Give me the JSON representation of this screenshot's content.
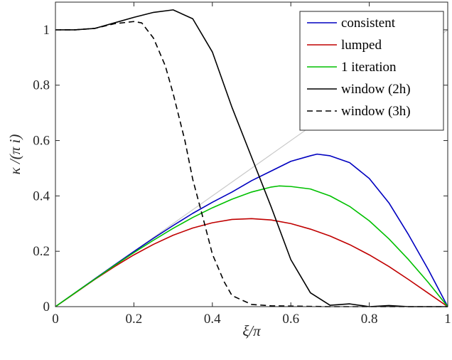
{
  "chart_data": {
    "type": "line",
    "xlabel": "ξ/π",
    "ylabel": "κ /(π i)",
    "xlim": [
      0,
      1
    ],
    "ylim": [
      0,
      1.1
    ],
    "xticks": [
      0,
      0.2,
      0.4,
      0.6,
      0.8,
      1
    ],
    "xtick_labels": [
      "0",
      "0.2",
      "0.4",
      "0.6",
      "0.8",
      "1"
    ],
    "yticks": [
      0,
      0.2,
      0.4,
      0.6,
      0.8,
      1
    ],
    "ytick_labels": [
      "0",
      "0.2",
      "0.4",
      "0.6",
      "0.8",
      "1"
    ],
    "grid": false,
    "legend_position": "top-right",
    "reference_line": {
      "color": "#c8c8c8",
      "x": [
        0,
        1
      ],
      "y": [
        0,
        1
      ]
    },
    "series": [
      {
        "name": "consistent",
        "color": "#0000c0",
        "dash": "solid",
        "x": [
          0,
          0.05,
          0.1,
          0.15,
          0.2,
          0.25,
          0.3,
          0.35,
          0.4,
          0.45,
          0.5,
          0.55,
          0.6,
          0.65,
          0.667,
          0.7,
          0.75,
          0.8,
          0.85,
          0.9,
          0.95,
          1
        ],
        "y": [
          0,
          0.05,
          0.1,
          0.15,
          0.199,
          0.247,
          0.293,
          0.337,
          0.377,
          0.414,
          0.455,
          0.49,
          0.525,
          0.545,
          0.551,
          0.545,
          0.52,
          0.463,
          0.375,
          0.26,
          0.135,
          0
        ]
      },
      {
        "name": "lumped",
        "color": "#c00000",
        "dash": "solid",
        "x": [
          0,
          0.05,
          0.1,
          0.15,
          0.2,
          0.25,
          0.3,
          0.35,
          0.4,
          0.45,
          0.5,
          0.55,
          0.6,
          0.65,
          0.7,
          0.75,
          0.8,
          0.85,
          0.9,
          0.95,
          1
        ],
        "y": [
          0,
          0.049,
          0.098,
          0.144,
          0.187,
          0.225,
          0.258,
          0.284,
          0.303,
          0.315,
          0.318,
          0.313,
          0.3,
          0.28,
          0.255,
          0.224,
          0.187,
          0.145,
          0.098,
          0.049,
          0
        ]
      },
      {
        "name": "1 iteration",
        "color": "#00c000",
        "dash": "solid",
        "x": [
          0,
          0.05,
          0.1,
          0.15,
          0.2,
          0.25,
          0.3,
          0.35,
          0.4,
          0.45,
          0.5,
          0.55,
          0.57,
          0.6,
          0.65,
          0.7,
          0.75,
          0.8,
          0.85,
          0.9,
          0.95,
          1
        ],
        "y": [
          0,
          0.05,
          0.099,
          0.148,
          0.195,
          0.24,
          0.283,
          0.322,
          0.357,
          0.388,
          0.414,
          0.432,
          0.436,
          0.434,
          0.425,
          0.4,
          0.362,
          0.31,
          0.245,
          0.17,
          0.088,
          0
        ]
      },
      {
        "name": "window (2h)",
        "color": "#000000",
        "dash": "solid",
        "x": [
          0,
          0.05,
          0.1,
          0.15,
          0.2,
          0.25,
          0.3,
          0.35,
          0.4,
          0.45,
          0.5,
          0.55,
          0.6,
          0.65,
          0.7,
          0.75,
          0.8,
          0.85,
          0.9,
          0.95,
          1
        ],
        "y": [
          1,
          1.0,
          1.005,
          1.025,
          1.045,
          1.063,
          1.072,
          1.04,
          0.92,
          0.72,
          0.54,
          0.36,
          0.17,
          0.05,
          0.005,
          0.01,
          0.0,
          0.004,
          0.0,
          0.0,
          0
        ]
      },
      {
        "name": "window (3h)",
        "color": "#000000",
        "dash": "dashed",
        "x": [
          0,
          0.05,
          0.1,
          0.15,
          0.2,
          0.22,
          0.25,
          0.28,
          0.3,
          0.33,
          0.35,
          0.38,
          0.4,
          0.43,
          0.45,
          0.5,
          0.55,
          0.6,
          0.7,
          0.8,
          0.9,
          1
        ],
        "y": [
          1,
          1.0,
          1.005,
          1.022,
          1.03,
          1.025,
          0.97,
          0.87,
          0.77,
          0.6,
          0.46,
          0.3,
          0.19,
          0.09,
          0.04,
          0.008,
          0.003,
          0.002,
          0.0,
          0.0,
          0.0,
          0
        ]
      }
    ]
  }
}
